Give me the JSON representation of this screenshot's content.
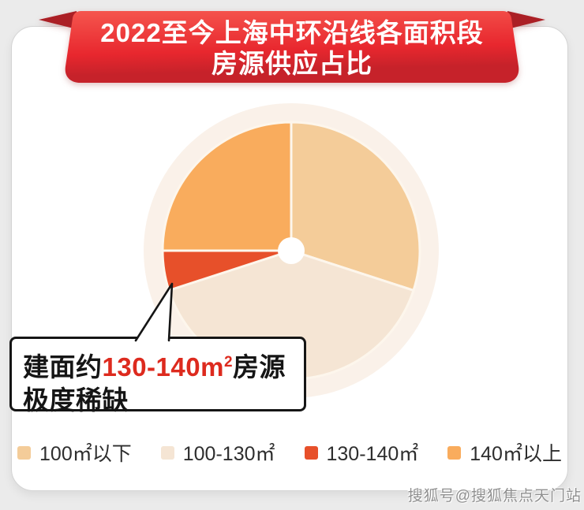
{
  "page": {
    "background": "#ebebeb",
    "watermark": "搜狐号@搜狐焦点天门站"
  },
  "banner": {
    "title_line1": "2022至今上海中环沿线各面积段",
    "title_line2": "房源供应占比",
    "red_top": "#F5564E",
    "red_mid": "#E8272E",
    "red_bottom": "#C6222A",
    "fold_color": "#AB1F25",
    "text_color": "#ffffff"
  },
  "callout": {
    "prefix": "建面约",
    "highlight": "130-140m",
    "highlight_sup": "2",
    "suffix": "房源",
    "line2": "极度稀缺",
    "highlight_color": "#dd2a1e"
  },
  "chart_data": {
    "type": "pie",
    "title": "2022至今上海中环沿线各面积段房源供应占比",
    "categories": [
      "100㎡以下",
      "100-130㎡",
      "130-140㎡",
      "140㎡以上"
    ],
    "values": [
      30,
      40,
      5,
      25
    ],
    "unit": "%",
    "colors": [
      "#F4CC99",
      "#F5E5D4",
      "#E7502A",
      "#F9AC5D"
    ],
    "start_angle_deg": 0,
    "direction": "clockwise",
    "center_hole_color": "#ffffff",
    "halo_color": "#FAF1E9",
    "divider_color": "#FDF6EC",
    "legend_position": "bottom",
    "annotation": {
      "text": "建面约130-140m²房源极度稀缺",
      "target_category": "130-140㎡"
    }
  }
}
